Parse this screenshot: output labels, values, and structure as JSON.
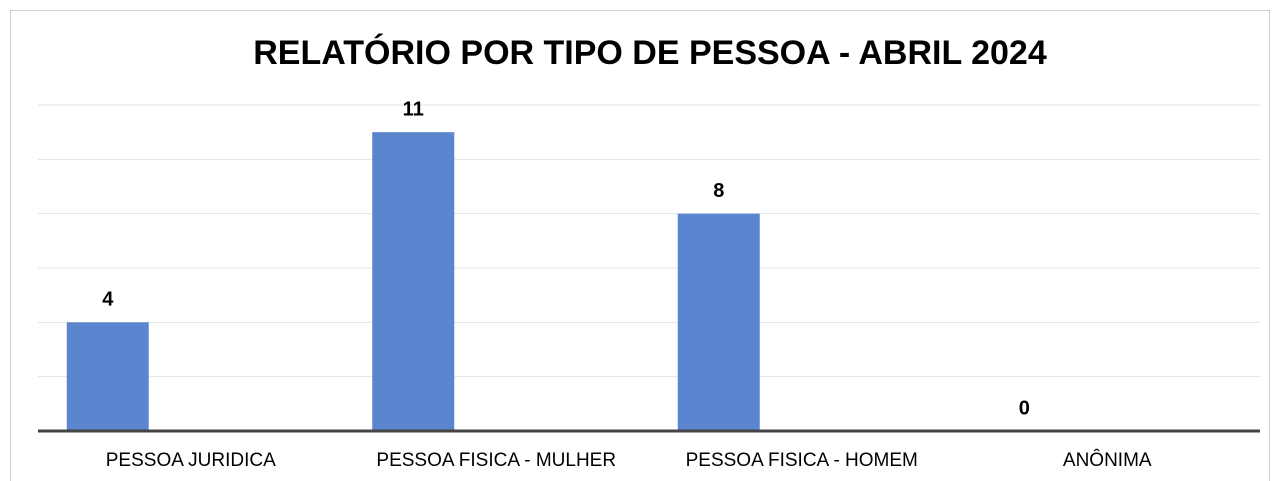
{
  "chart_data": {
    "type": "bar",
    "title": "RELATÓRIO POR TIPO DE PESSOA -  ABRIL 2024",
    "categories": [
      "PESSOA JURIDICA",
      "PESSOA FISICA - MULHER",
      "PESSOA FISICA - HOMEM",
      "ANÔNIMA"
    ],
    "values": [
      4,
      11,
      8,
      0
    ],
    "color": "#5b86cf",
    "ylim": [
      0,
      12
    ],
    "yticks": [
      0,
      2,
      4,
      6,
      8,
      10,
      12
    ],
    "grid": true,
    "show_tick_labels": false,
    "data_labels": true
  }
}
